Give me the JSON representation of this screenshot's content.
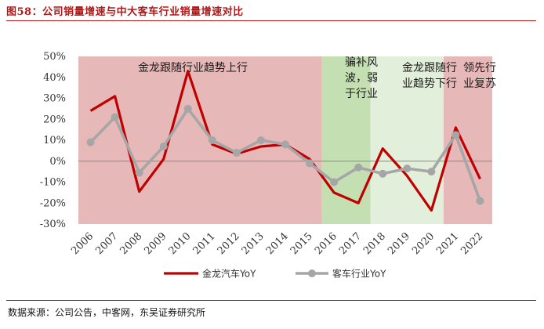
{
  "figure": {
    "title": "图58：公司销量增速与中大客车行业销量增速对比",
    "source": "数据来源：公司公告，中客网，东吴证券研究所"
  },
  "chart_data": {
    "type": "line",
    "categories": [
      "2006",
      "2007",
      "2008",
      "2009",
      "2010",
      "2011",
      "2012",
      "2013",
      "2014",
      "2015",
      "2016",
      "2017",
      "2018",
      "2019",
      "2020",
      "2021",
      "2022"
    ],
    "series": [
      {
        "name": "金龙汽车YoY",
        "color": "#c00000",
        "values": [
          24,
          31,
          -14.5,
          1,
          43,
          8,
          3.5,
          7,
          8,
          1,
          -15,
          -20,
          6,
          -7,
          -23.5,
          16,
          -8.5
        ]
      },
      {
        "name": "客车行业YoY",
        "color": "#a6a6a6",
        "values": [
          9,
          21,
          -5.5,
          7,
          25,
          10,
          4,
          10,
          8,
          -1,
          -10,
          -3,
          -6,
          -3.5,
          -5,
          12.5,
          -19
        ]
      }
    ],
    "ylim": [
      -30,
      50
    ],
    "yticks": [
      "50%",
      "40%",
      "30%",
      "20%",
      "10%",
      "0%",
      "-10%",
      "-20%",
      "-30%"
    ],
    "grid": false,
    "legend_position": "bottom",
    "bands": [
      {
        "label_lines": [
          "金龙跟随行业趋势上行"
        ],
        "from": "2005.5",
        "to": "2015.5",
        "color": "#e6b8b7"
      },
      {
        "label_lines": [
          "骗补风",
          "波，弱",
          "于行业"
        ],
        "from": "2015.5",
        "to": "2017.5",
        "color": "#c4e0b2"
      },
      {
        "label_lines": [
          "金龙跟随行",
          "业趋势下行"
        ],
        "from": "2017.5",
        "to": "2020.5",
        "color": "#e2efda"
      },
      {
        "label_lines": [
          "领先行",
          "业复苏"
        ],
        "from": "2020.5",
        "to": "2022.5",
        "color": "#e6b8b7"
      }
    ]
  }
}
